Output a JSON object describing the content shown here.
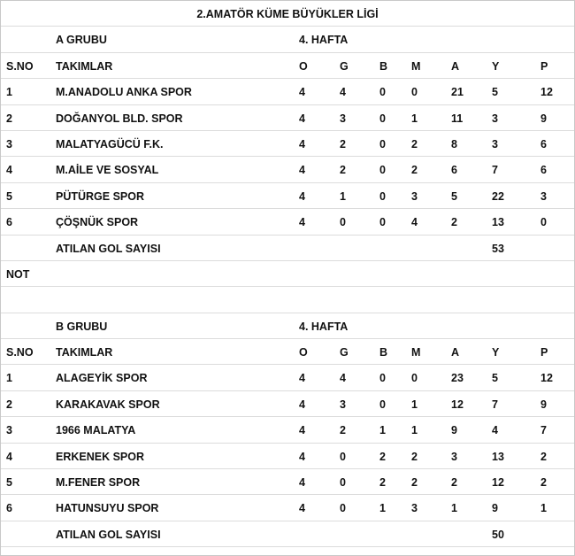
{
  "title": "2.AMATÖR KÜME BÜYÜKLER  LİGİ",
  "columns": [
    "S.NO",
    "TAKIMLAR",
    "O",
    "G",
    "B",
    "M",
    "A",
    "Y",
    "P"
  ],
  "not_label": "NOT",
  "groups": [
    {
      "name": "A GRUBU",
      "week": "4. HAFTA",
      "rows": [
        [
          "1",
          "M.ANADOLU ANKA SPOR",
          "4",
          "4",
          "0",
          "0",
          "21",
          "5",
          "12"
        ],
        [
          "2",
          "DOĞANYOL BLD. SPOR",
          "4",
          "3",
          "0",
          "1",
          "11",
          "3",
          "9"
        ],
        [
          "3",
          "MALATYAGÜCÜ F.K.",
          "4",
          "2",
          "0",
          "2",
          "8",
          "3",
          "6"
        ],
        [
          "4",
          "M.AİLE VE SOSYAL",
          "4",
          "2",
          "0",
          "2",
          "6",
          "7",
          "6"
        ],
        [
          "5",
          "PÜTÜRGE SPOR",
          "4",
          "1",
          "0",
          "3",
          "5",
          "22",
          "3"
        ],
        [
          "6",
          "ÇÖŞNÜK SPOR",
          "4",
          "0",
          "0",
          "4",
          "2",
          "13",
          "0"
        ]
      ],
      "goals_label": "ATILAN GOL SAYISI",
      "goals": "53"
    },
    {
      "name": "B GRUBU",
      "week": "4. HAFTA",
      "rows": [
        [
          "1",
          "ALAGEYİK SPOR",
          "4",
          "4",
          "0",
          "0",
          "23",
          "5",
          "12"
        ],
        [
          "2",
          "KARAKAVAK SPOR",
          "4",
          "3",
          "0",
          "1",
          "12",
          "7",
          "9"
        ],
        [
          "3",
          "1966 MALATYA",
          "4",
          "2",
          "1",
          "1",
          "9",
          "4",
          "7"
        ],
        [
          "4",
          "ERKENEK SPOR",
          "4",
          "0",
          "2",
          "2",
          "3",
          "13",
          "2"
        ],
        [
          "5",
          "M.FENER SPOR",
          "4",
          "0",
          "2",
          "2",
          "2",
          "12",
          "2"
        ],
        [
          "6",
          "HATUNSUYU SPOR",
          "4",
          "0",
          "1",
          "3",
          "1",
          "9",
          "1"
        ]
      ],
      "goals_label": "ATILAN GOL SAYISI",
      "goals": "50"
    }
  ]
}
